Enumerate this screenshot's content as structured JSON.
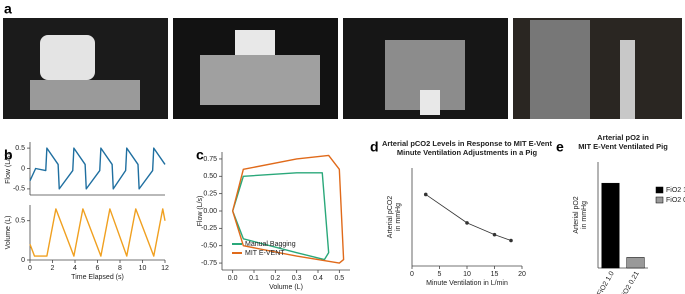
{
  "photo_panel": "a",
  "chart_data": [
    {
      "type": "line",
      "panel": "b",
      "ylabel": "Flow (L/s)",
      "x": [
        0,
        0.5,
        1.4,
        1.5,
        2.5,
        2.6,
        3.8,
        3.9,
        4.9,
        5.0,
        6.2,
        6.3,
        7.3,
        7.4,
        8.5,
        8.6,
        9.6,
        9.7,
        10.9,
        11.0,
        12
      ],
      "series": [
        {
          "color": "#1f6fa0",
          "values": [
            -0.3,
            0,
            -0.05,
            0.5,
            0.1,
            -0.5,
            -0.05,
            0.5,
            0.1,
            -0.5,
            -0.05,
            0.5,
            0.1,
            -0.5,
            -0.05,
            0.5,
            0.1,
            -0.5,
            -0.05,
            0.5,
            0.1
          ]
        }
      ],
      "xlim": [
        0,
        12
      ],
      "ylim": [
        -0.65,
        0.65
      ],
      "yticks": [
        -0.5,
        0,
        0.5
      ]
    },
    {
      "type": "line",
      "ylabel": "Volume (L)",
      "xlabel": "Time Elapsed (s)",
      "x": [
        0,
        0.4,
        1.5,
        2.3,
        3.9,
        4.7,
        6.3,
        7.1,
        8.6,
        9.4,
        11.0,
        11.8,
        12
      ],
      "series": [
        {
          "color": "#f0a020",
          "values": [
            0.2,
            0.05,
            0.05,
            0.65,
            0.05,
            0.65,
            0.05,
            0.65,
            0.05,
            0.65,
            0.05,
            0.65,
            0.5
          ]
        }
      ],
      "xlim": [
        0,
        12
      ],
      "ylim": [
        0,
        0.7
      ],
      "yticks": [
        0,
        0.5
      ],
      "xticks": [
        0,
        2,
        4,
        6,
        8,
        10,
        12
      ]
    },
    {
      "type": "line",
      "panel": "c",
      "ylabel": "Flow (L/s)",
      "xlabel": "Volume (L)",
      "series": [
        {
          "name": "Manual Bagging",
          "color": "#2aa87a",
          "x": [
            0,
            0.05,
            0.3,
            0.42,
            0.45,
            0.43,
            0.3,
            0.05,
            0
          ],
          "values": [
            0,
            0.5,
            0.55,
            0.55,
            -0.6,
            -0.7,
            -0.6,
            -0.4,
            0
          ]
        },
        {
          "name": "MIT E-VENT",
          "color": "#e06a1a",
          "x": [
            0,
            0.05,
            0.3,
            0.45,
            0.5,
            0.52,
            0.5,
            0.3,
            0.05,
            0
          ],
          "values": [
            0,
            0.6,
            0.75,
            0.8,
            0.6,
            -0.7,
            -0.75,
            -0.65,
            -0.5,
            0
          ]
        }
      ],
      "xlim": [
        -0.05,
        0.55
      ],
      "ylim": [
        -0.85,
        0.85
      ],
      "xticks": [
        {
          "value": 0,
          "label": "0.0"
        },
        0.1,
        0.2,
        0.3,
        0.4,
        0.5
      ],
      "yticks": [
        -0.75,
        {
          "value": -0.5,
          "label": "-0.50"
        },
        -0.25,
        {
          "value": 0,
          "label": "0.00"
        },
        0.25,
        {
          "value": 0.5,
          "label": "0.50"
        },
        0.75
      ]
    },
    {
      "type": "line",
      "panel": "d",
      "markers": true,
      "title": [
        "Arterial pCO2 Levels in Response to MIT E-Vent",
        "Minute Ventilation Adjustments in a Pig"
      ],
      "ylabel": [
        "Arterial pCO2",
        "in mmHg"
      ],
      "xlabel": "Minute Ventilation in L/min",
      "x": [
        2.5,
        10,
        15,
        18
      ],
      "series": [
        {
          "color": "#333333",
          "values": [
            73,
            44,
            32,
            26
          ]
        }
      ],
      "xlim": [
        0,
        20
      ],
      "ylim": [
        0,
        100
      ],
      "xticks": [
        0,
        5,
        10,
        15,
        20
      ]
    },
    {
      "type": "bar",
      "panel": "e",
      "title": [
        "Arterial pO2 in",
        "MIT E-Vent Ventilated Pig"
      ],
      "ylabel": [
        "Arterial pO2",
        "in mmHg"
      ],
      "categories": [
        "FiO2 1.0",
        "FiO2 0.21"
      ],
      "values": [
        560,
        70
      ],
      "colors": [
        "#000000",
        "#999999"
      ],
      "ylim": [
        0,
        700
      ]
    }
  ]
}
